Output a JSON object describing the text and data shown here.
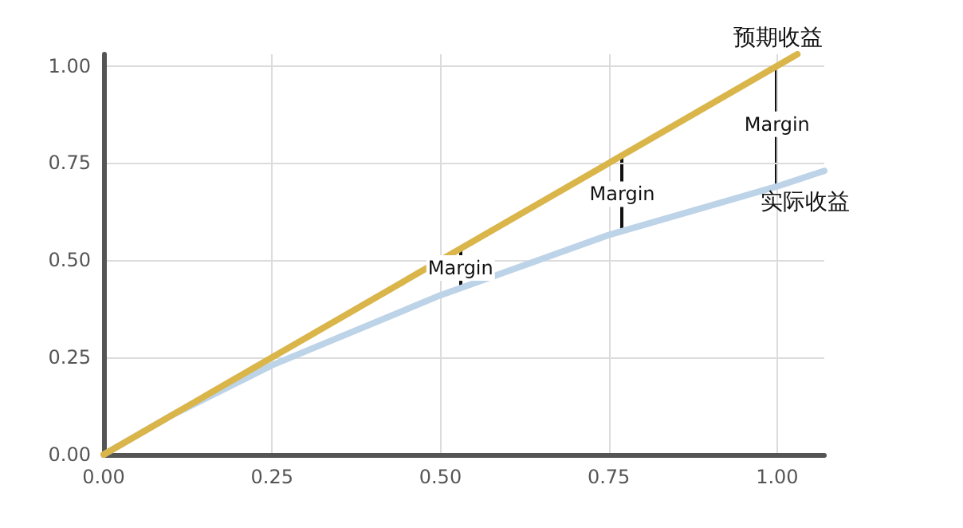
{
  "chart_data": {
    "type": "line",
    "x": [
      0,
      0.1,
      0.25,
      0.5,
      0.75,
      1.0,
      1.07
    ],
    "series": [
      {
        "name": "实际收益",
        "color": "#bcd3e8",
        "values": [
          0,
          0.1,
          0.23,
          0.41,
          0.565,
          0.69,
          0.73
        ]
      },
      {
        "name": "预期收益",
        "color": "#d9b54a",
        "x": [
          0,
          1.03
        ],
        "values": [
          0,
          1.03
        ]
      }
    ],
    "xlim": [
      0,
      1.07
    ],
    "ylim": [
      0,
      1.03
    ],
    "xticks": [
      {
        "value": 0,
        "label": "0.00"
      },
      {
        "value": 0.25,
        "label": "0.25"
      },
      {
        "value": 0.5,
        "label": "0.50"
      },
      {
        "value": 0.75,
        "label": "0.75"
      },
      {
        "value": 1,
        "label": "1.00"
      }
    ],
    "yticks": [
      {
        "value": 0,
        "label": "0.00"
      },
      {
        "value": 0.25,
        "label": "0.25"
      },
      {
        "value": 0.5,
        "label": "0.50"
      },
      {
        "value": 0.75,
        "label": "0.75"
      },
      {
        "value": 1,
        "label": "1.00"
      }
    ],
    "annotations": [
      {
        "text": "Margin",
        "x": 0.53,
        "y": 0.48
      },
      {
        "text": "Margin",
        "x": 0.77,
        "y": 0.67
      },
      {
        "text": "Margin",
        "x": 1.0,
        "y": 0.85
      }
    ],
    "grid": true,
    "legend": false,
    "marker": "none",
    "line_style": "solid"
  }
}
